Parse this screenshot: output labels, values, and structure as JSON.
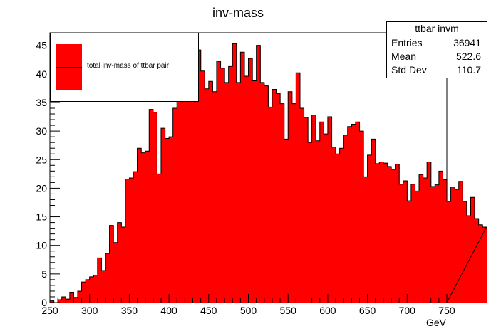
{
  "colors": {
    "fill": "#ff0000",
    "line": "#000000",
    "background": "#ffffff"
  },
  "stats": {
    "title": "ttbar invm",
    "rows": [
      {
        "key": "Entries",
        "value": "36941"
      },
      {
        "key": "Mean",
        "value": "522.6"
      },
      {
        "key": "Std Dev",
        "value": "110.7"
      }
    ]
  },
  "legend": {
    "entry": "total inv-mass of ttbar pair"
  },
  "chart_data": {
    "type": "bar",
    "title": "inv-mass",
    "xlabel": "GeV",
    "ylabel": "",
    "xlim": [
      250,
      750
    ],
    "ylim": [
      0,
      47.2
    ],
    "bin_width": 5,
    "x_ticks": [
      250,
      300,
      350,
      400,
      450,
      500,
      550,
      600,
      650,
      700,
      750
    ],
    "y_ticks": [
      0,
      5,
      10,
      15,
      20,
      25,
      30,
      35,
      40,
      45
    ],
    "series": [
      {
        "name": "total inv-mass of ttbar pair",
        "values": [
          0.3,
          0.0,
          0.5,
          1.0,
          0.6,
          1.8,
          0.9,
          2.0,
          3.6,
          4.0,
          4.5,
          4.8,
          7.8,
          5.6,
          8.6,
          13.5,
          10.5,
          14.0,
          13.2,
          21.6,
          21.8,
          22.9,
          27.0,
          26.2,
          26.5,
          33.8,
          33.3,
          22.5,
          30.5,
          28.7,
          29.0,
          34.0,
          36.0,
          41.5,
          43.2,
          42.7,
          44.3,
          44.2,
          40.5,
          37.4,
          38.7,
          36.9,
          42.2,
          41.0,
          38.5,
          41.3,
          45.3,
          38.5,
          43.8,
          39.6,
          42.7,
          38.8,
          45.0,
          38.5,
          37.9,
          34.2,
          37.3,
          36.6,
          34.8,
          28.6,
          36.9,
          34.8,
          40.2,
          34.0,
          32.4,
          28.0,
          32.8,
          28.3,
          31.6,
          29.5,
          32.5,
          27.2,
          26.0,
          27.0,
          29.3,
          30.8,
          31.2,
          31.6,
          30.0,
          22.0,
          25.8,
          28.6,
          24.3,
          24.6,
          24.4,
          23.8,
          23.3,
          24.2,
          20.7,
          21.3,
          17.8,
          20.7,
          19.5,
          22.4,
          21.8,
          24.6,
          20.3,
          20.6,
          23.0,
          21.5,
          17.7,
          20.2,
          19.8,
          21.2,
          17.7,
          15.2,
          18.4,
          14.7,
          13.6,
          13.2
        ]
      }
    ]
  }
}
